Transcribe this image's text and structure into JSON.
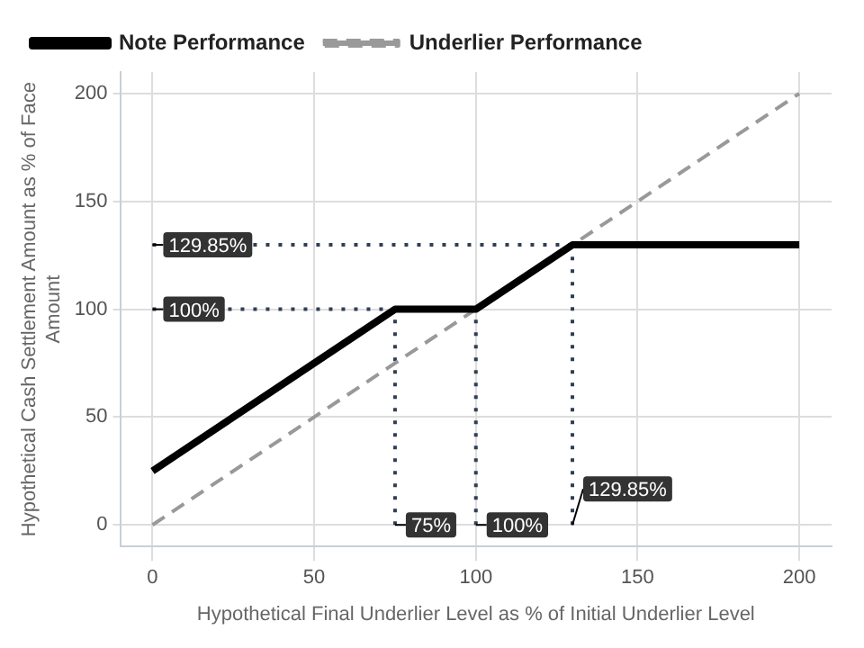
{
  "chart_data": {
    "type": "line",
    "xlabel": "Hypothetical Final Underlier Level as % of Initial Underlier Level",
    "ylabel": "Hypothetical Cash Settlement Amount as % of Face Amount",
    "xlim": [
      -10,
      210
    ],
    "xticks": [
      0,
      50,
      100,
      150,
      200
    ],
    "ylim": [
      -10,
      210
    ],
    "yticks": [
      0,
      50,
      100,
      150,
      200
    ],
    "grid": true,
    "legend": "top left",
    "marker": "none",
    "series": [
      {
        "name": "Note Performance",
        "color": "#000000",
        "x": [
          0,
          75,
          100,
          129.85,
          200
        ],
        "values": [
          25,
          100,
          100,
          129.85,
          129.85
        ],
        "line_style": "solid"
      },
      {
        "name": "Underlier Performance",
        "color": "#999999",
        "x": [
          0,
          200
        ],
        "values": [
          0,
          200
        ],
        "line_style": "dashed"
      },
      {
        "color": "#2f3e55",
        "x": [
          0,
          129.85
        ],
        "values": [
          129.85,
          129.85
        ],
        "line_style": "dotted"
      },
      {
        "color": "#2f3e55",
        "x": [
          0,
          75
        ],
        "values": [
          100,
          100
        ],
        "line_style": "dotted"
      },
      {
        "color": "#2f3e55",
        "x": [
          75,
          75
        ],
        "values": [
          0,
          100
        ],
        "line_style": "dotted"
      },
      {
        "color": "#2f3e55",
        "x": [
          100,
          100
        ],
        "values": [
          0,
          100
        ],
        "line_style": "dotted"
      },
      {
        "color": "#2f3e55",
        "x": [
          129.85,
          129.85
        ],
        "values": [
          0,
          129.85
        ],
        "line_style": "dotted"
      }
    ],
    "annotations": [
      {
        "text": "129.85%",
        "x": 0,
        "y": 129.85
      },
      {
        "text": "100%",
        "x": 0,
        "y": 100
      },
      {
        "text": "75%",
        "x": 75,
        "y": 0
      },
      {
        "text": "100%",
        "x": 100,
        "y": 0
      },
      {
        "text": "129.85%",
        "x": 129.85,
        "y": 0
      }
    ]
  }
}
